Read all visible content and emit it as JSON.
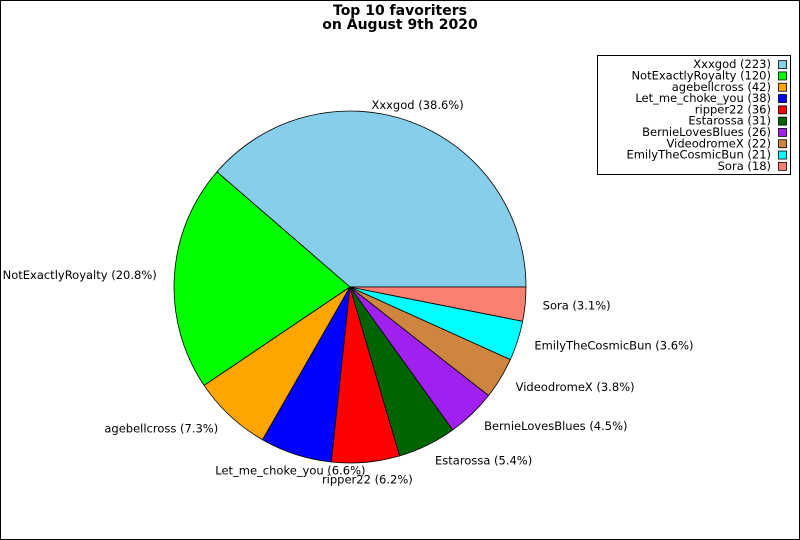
{
  "chart_data": {
    "type": "pie",
    "title": "Top 10 favoriters",
    "subtitle": "on August 9th 2020",
    "categories": [
      "Xxxgod (223)",
      "NotExactlyRoyalty (120)",
      "agebellcross (42)",
      "Let_me_choke_you (38)",
      "ripper22 (36)",
      "Estarossa (31)",
      "BernieLovesBlues (26)",
      "VideodromeX (22)",
      "EmilyTheCosmicBun (21)",
      "Sora (18)"
    ],
    "values": [
      223,
      120,
      42,
      38,
      36,
      31,
      26,
      22,
      21,
      18
    ],
    "value_labels": [
      "Xxxgod (38.6%)",
      "NotExactlyRoyalty (20.8%)",
      "agebellcross (7.3%)",
      "Let_me_choke_you (6.6%)",
      "ripper22 (6.2%)",
      "Estarossa (5.4%)",
      "BernieLovesBlues (4.5%)",
      "VideodromeX (3.8%)",
      "EmilyTheCosmicBun (3.6%)",
      "Sora (3.1%)"
    ],
    "colors": [
      "#87ceeb",
      "#00ff00",
      "#ffa500",
      "#0000ff",
      "#ff0000",
      "#006400",
      "#a020f0",
      "#cd853f",
      "#00ffff",
      "#fa8072"
    ],
    "legend": "upper right"
  }
}
